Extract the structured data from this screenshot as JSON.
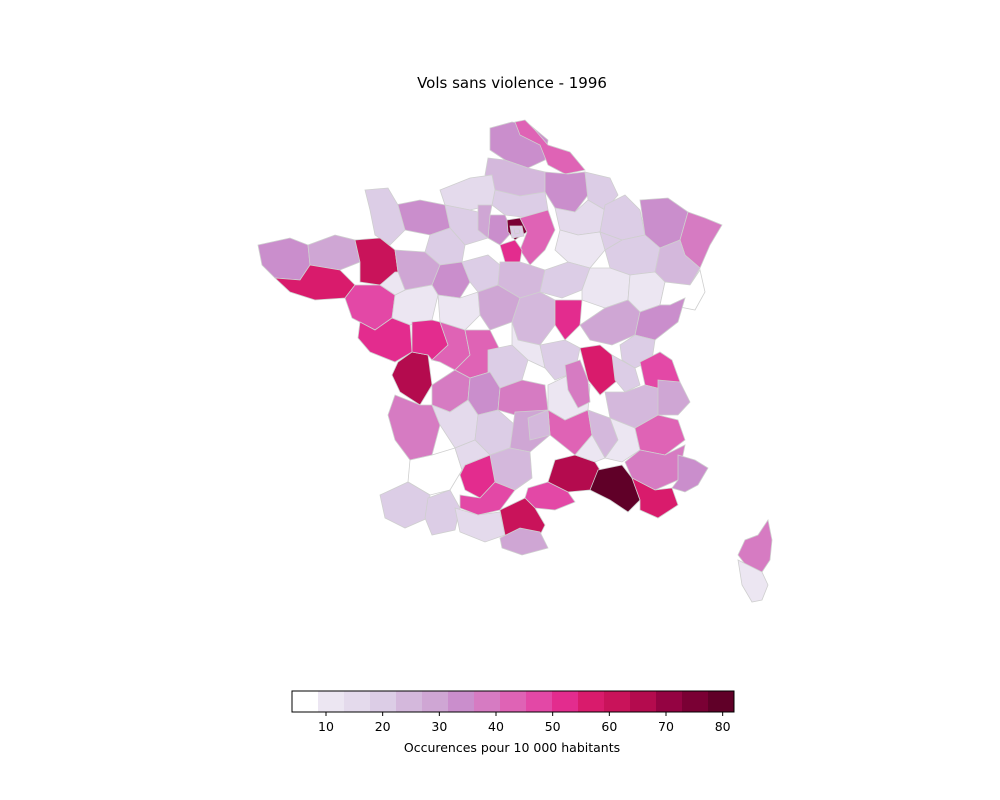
{
  "title": "Vols sans violence - 1996",
  "colorbar": {
    "label": "Occurences pour 10 000 habitants",
    "ticks": [
      10,
      20,
      30,
      40,
      50,
      60,
      70,
      80
    ],
    "range": [
      4,
      82
    ],
    "colors": [
      "#ffffff",
      "#ece6f2",
      "#e4daec",
      "#dccde6",
      "#d4b8dc",
      "#cfa6d4",
      "#ca8ecc",
      "#d67bc2",
      "#df63b5",
      "#e348a6",
      "#e32c8e",
      "#d91b6c",
      "#c9135a",
      "#b40b4e",
      "#940342",
      "#7a0034",
      "#600028"
    ]
  },
  "chart_data": {
    "type": "heatmap",
    "title": "Vols sans violence - 1996",
    "colorbar_label": "Occurences pour 10 000 habitants",
    "colorbar_ticks": [
      10,
      20,
      30,
      40,
      50,
      60,
      70,
      80
    ],
    "value_range": [
      4,
      82
    ],
    "regions": [
      {
        "value": 33
      },
      {
        "value": 45
      },
      {
        "value": 25
      },
      {
        "value": 33
      },
      {
        "value": 20
      },
      {
        "value": 20
      },
      {
        "value": 16
      },
      {
        "value": 22
      },
      {
        "value": 35
      },
      {
        "value": 22
      },
      {
        "value": 18
      },
      {
        "value": 35
      },
      {
        "value": 75
      },
      {
        "value": 45
      },
      {
        "value": 50
      },
      {
        "value": 16
      },
      {
        "value": 22
      },
      {
        "value": 33
      },
      {
        "value": 12
      },
      {
        "value": 40
      },
      {
        "value": 20
      },
      {
        "value": 25
      },
      {
        "value": 35
      },
      {
        "value": 30
      },
      {
        "value": 55
      },
      {
        "value": 60
      },
      {
        "value": 48
      },
      {
        "value": 28
      },
      {
        "value": 33
      },
      {
        "value": 12
      },
      {
        "value": 50
      },
      {
        "value": 20
      },
      {
        "value": 25
      },
      {
        "value": 12
      },
      {
        "value": 30
      },
      {
        "value": 25
      },
      {
        "value": 20
      },
      {
        "value": 12
      },
      {
        "value": 50
      },
      {
        "value": 12
      },
      {
        "value": 8
      },
      {
        "value": 28
      },
      {
        "value": 35
      },
      {
        "value": 22
      },
      {
        "value": 65
      },
      {
        "value": 50
      },
      {
        "value": 45
      },
      {
        "value": 40
      },
      {
        "value": 45
      },
      {
        "value": 20
      },
      {
        "value": 12
      },
      {
        "value": 22
      },
      {
        "value": 35
      },
      {
        "value": 38
      },
      {
        "value": 12
      },
      {
        "value": 55
      },
      {
        "value": 40
      },
      {
        "value": 20
      },
      {
        "value": 48
      },
      {
        "value": 25
      },
      {
        "value": 28
      },
      {
        "value": 38
      },
      {
        "value": 15
      },
      {
        "value": 18
      },
      {
        "value": 30
      },
      {
        "value": 45
      },
      {
        "value": 25
      },
      {
        "value": 10
      },
      {
        "value": 45
      },
      {
        "value": 40
      },
      {
        "value": 35
      },
      {
        "value": 65
      },
      {
        "value": 80
      },
      {
        "value": 55
      },
      {
        "value": 48
      },
      {
        "value": 25
      },
      {
        "value": 52
      },
      {
        "value": 48
      },
      {
        "value": 4
      },
      {
        "value": 22
      },
      {
        "value": 20
      },
      {
        "value": 15
      },
      {
        "value": 60
      },
      {
        "value": 30
      },
      {
        "value": 28
      },
      {
        "value": 12
      },
      {
        "value": 20
      },
      {
        "value": 25
      },
      {
        "value": 12
      },
      {
        "value": 15
      },
      {
        "value": 40
      },
      {
        "value": 12
      },
      {
        "value": 20
      },
      {
        "value": 22
      }
    ]
  }
}
